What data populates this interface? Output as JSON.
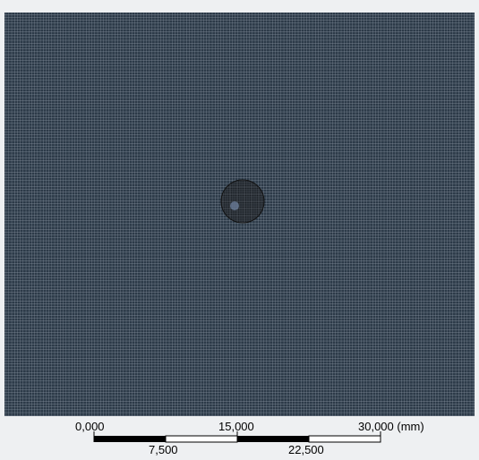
{
  "scale_bar": {
    "labels_top": [
      "0,000",
      "15,000",
      "30,000 (mm)"
    ],
    "labels_bottom": [
      "7,500",
      "22,500"
    ]
  }
}
